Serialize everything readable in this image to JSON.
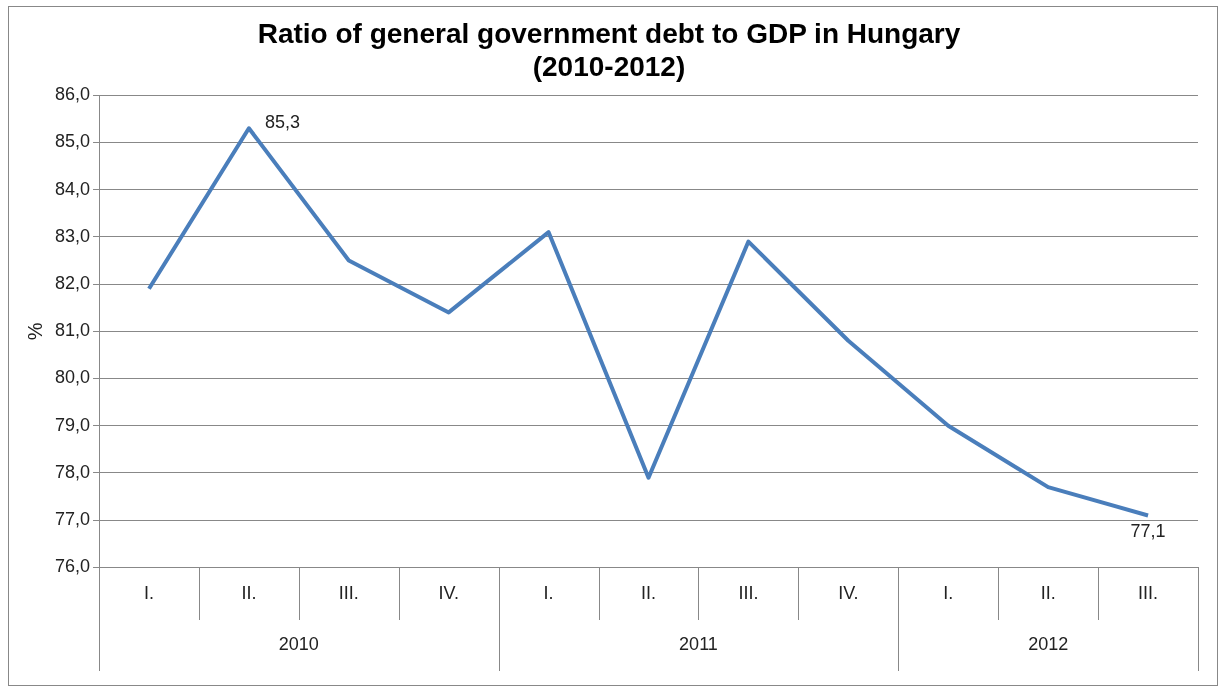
{
  "chart_data": {
    "type": "line",
    "title": "Ratio of general government debt to GDP in Hungary\n(2010-2012)",
    "ylabel": "%",
    "categories": [
      "I.",
      "II.",
      "III.",
      "IV.",
      "I.",
      "II.",
      "III.",
      "IV.",
      "I.",
      "II.",
      "III."
    ],
    "values": [
      81.9,
      85.3,
      82.5,
      81.4,
      83.1,
      77.9,
      82.9,
      80.8,
      79.0,
      77.7,
      77.1
    ],
    "value_labels": [
      null,
      "85,3",
      null,
      null,
      null,
      null,
      null,
      null,
      null,
      null,
      "77,1"
    ],
    "color": "#4a7ebb",
    "marker": "none",
    "line_style": "solid",
    "grid": "y",
    "legend": false,
    "ylim": [
      76,
      86
    ],
    "yticks": [
      {
        "value": 76,
        "label": "76,0"
      },
      {
        "value": 77,
        "label": "77,0"
      },
      {
        "value": 78,
        "label": "78,0"
      },
      {
        "value": 79,
        "label": "79,0"
      },
      {
        "value": 80,
        "label": "80,0"
      },
      {
        "value": 81,
        "label": "81,0"
      },
      {
        "value": 82,
        "label": "82,0"
      },
      {
        "value": 83,
        "label": "83,0"
      },
      {
        "value": 84,
        "label": "84,0"
      },
      {
        "value": 85,
        "label": "85,0"
      },
      {
        "value": 86,
        "label": "86,0"
      }
    ],
    "annotations": [
      "2010",
      "2011",
      "2012"
    ]
  }
}
